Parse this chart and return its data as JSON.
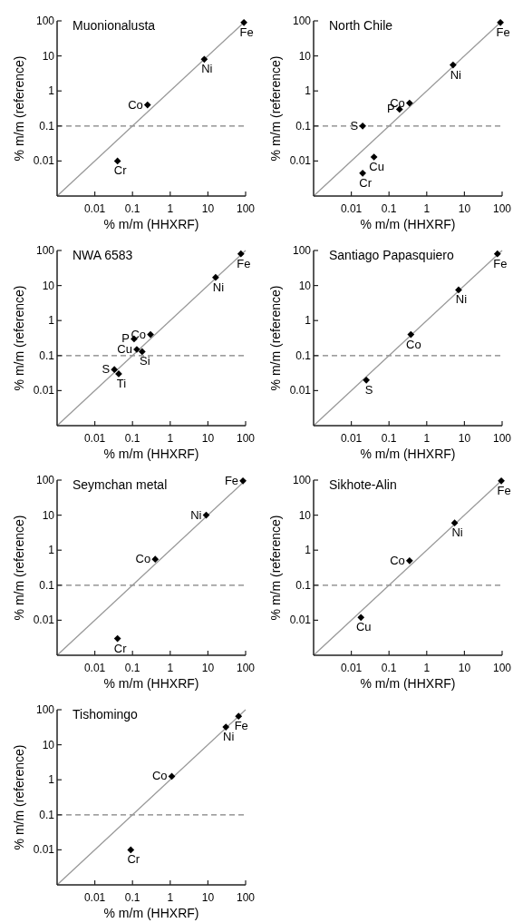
{
  "chart_data": [
    {
      "type": "scatter",
      "title": "Muonionalusta",
      "xlabel": "% m/m (HHXRF)",
      "ylabel": "% m/m (reference)",
      "log": "xy",
      "xlim": [
        0.001,
        100
      ],
      "ylim": [
        0.001,
        100
      ],
      "xticks": [
        0.01,
        0.1,
        1,
        10,
        100
      ],
      "yticks": [
        0.01,
        0.1,
        1,
        10,
        100
      ],
      "grid": false,
      "ref_lines": [
        {
          "axis": "y",
          "value": 0.1,
          "color": "#808080",
          "line_style": "dashed"
        }
      ],
      "series": [
        {
          "type": "line",
          "color": "#999999",
          "x": [
            0.001,
            100
          ],
          "values": [
            0.001,
            100
          ]
        },
        {
          "type": "scatter",
          "color": "#000000",
          "marker": "diamond",
          "x": [
            90,
            8,
            0.25,
            0.04
          ],
          "values": [
            90,
            8,
            0.4,
            0.01
          ]
        }
      ],
      "annotations": [
        {
          "text": "Fe",
          "x": 90,
          "y": 90
        },
        {
          "text": "Ni",
          "x": 8,
          "y": 8
        },
        {
          "text": "Co",
          "x": 0.25,
          "y": 0.4
        },
        {
          "text": "Cr",
          "x": 0.04,
          "y": 0.01
        }
      ]
    },
    {
      "type": "scatter",
      "title": "North Chile",
      "xlabel": "% m/m (HHXRF)",
      "ylabel": "% m/m (reference)",
      "log": "xy",
      "xlim": [
        0.001,
        100
      ],
      "ylim": [
        0.001,
        100
      ],
      "xticks": [
        0.01,
        0.1,
        1,
        10,
        100
      ],
      "yticks": [
        0.01,
        0.1,
        1,
        10,
        100
      ],
      "grid": false,
      "ref_lines": [
        {
          "axis": "y",
          "value": 0.1,
          "color": "#808080",
          "line_style": "dashed"
        }
      ],
      "series": [
        {
          "type": "line",
          "color": "#999999",
          "x": [
            0.001,
            100
          ],
          "values": [
            0.001,
            100
          ]
        },
        {
          "type": "scatter",
          "color": "#000000",
          "marker": "diamond",
          "x": [
            90,
            5,
            0.35,
            0.19,
            0.02,
            0.04,
            0.02
          ],
          "values": [
            90,
            5.5,
            0.45,
            0.3,
            0.1,
            0.013,
            0.0045
          ]
        }
      ],
      "annotations": [
        {
          "text": "Fe",
          "x": 90,
          "y": 90
        },
        {
          "text": "Ni",
          "x": 5,
          "y": 5.5
        },
        {
          "text": "Co",
          "x": 0.35,
          "y": 0.45
        },
        {
          "text": "P",
          "x": 0.19,
          "y": 0.3
        },
        {
          "text": "S",
          "x": 0.02,
          "y": 0.1
        },
        {
          "text": "Cu",
          "x": 0.04,
          "y": 0.013
        },
        {
          "text": "Cr",
          "x": 0.02,
          "y": 0.0045
        }
      ]
    },
    {
      "type": "scatter",
      "title": "NWA 6583",
      "xlabel": "% m/m (HHXRF)",
      "ylabel": "% m/m (reference)",
      "log": "xy",
      "xlim": [
        0.001,
        100
      ],
      "ylim": [
        0.001,
        100
      ],
      "xticks": [
        0.01,
        0.1,
        1,
        10,
        100
      ],
      "yticks": [
        0.01,
        0.1,
        1,
        10,
        100
      ],
      "grid": false,
      "ref_lines": [
        {
          "axis": "y",
          "value": 0.1,
          "color": "#808080",
          "line_style": "dashed"
        }
      ],
      "series": [
        {
          "type": "line",
          "color": "#999999",
          "x": [
            0.001,
            100
          ],
          "values": [
            0.001,
            100
          ]
        },
        {
          "type": "scatter",
          "color": "#000000",
          "marker": "diamond",
          "x": [
            75,
            16,
            0.3,
            0.11,
            0.13,
            0.18,
            0.033,
            0.043
          ],
          "values": [
            80,
            17,
            0.4,
            0.3,
            0.15,
            0.13,
            0.04,
            0.03
          ]
        }
      ],
      "annotations": [
        {
          "text": "Fe",
          "x": 75,
          "y": 80
        },
        {
          "text": "Ni",
          "x": 16,
          "y": 17
        },
        {
          "text": "Co",
          "x": 0.3,
          "y": 0.4
        },
        {
          "text": "P",
          "x": 0.11,
          "y": 0.3
        },
        {
          "text": "Cu",
          "x": 0.13,
          "y": 0.15
        },
        {
          "text": "Si",
          "x": 0.18,
          "y": 0.13
        },
        {
          "text": "S",
          "x": 0.033,
          "y": 0.04
        },
        {
          "text": "Ti",
          "x": 0.043,
          "y": 0.03
        }
      ]
    },
    {
      "type": "scatter",
      "title": "Santiago Papasquiero",
      "xlabel": "% m/m (HHXRF)",
      "ylabel": "% m/m (reference)",
      "log": "xy",
      "xlim": [
        0.001,
        100
      ],
      "ylim": [
        0.001,
        100
      ],
      "xticks": [
        0.01,
        0.1,
        1,
        10,
        100
      ],
      "yticks": [
        0.01,
        0.1,
        1,
        10,
        100
      ],
      "grid": false,
      "ref_lines": [
        {
          "axis": "y",
          "value": 0.1,
          "color": "#808080",
          "line_style": "dashed"
        }
      ],
      "series": [
        {
          "type": "line",
          "color": "#999999",
          "x": [
            0.001,
            100
          ],
          "values": [
            0.001,
            100
          ]
        },
        {
          "type": "scatter",
          "color": "#000000",
          "marker": "diamond",
          "x": [
            75,
            7,
            0.38,
            0.025
          ],
          "values": [
            80,
            7.5,
            0.4,
            0.02
          ]
        }
      ],
      "annotations": [
        {
          "text": "Fe",
          "x": 75,
          "y": 80
        },
        {
          "text": "Ni",
          "x": 7,
          "y": 7.5
        },
        {
          "text": "Co",
          "x": 0.38,
          "y": 0.4
        },
        {
          "text": "S",
          "x": 0.025,
          "y": 0.02
        }
      ]
    },
    {
      "type": "scatter",
      "title": "Seymchan metal",
      "xlabel": "% m/m (HHXRF)",
      "ylabel": "% m/m (reference)",
      "log": "xy",
      "xlim": [
        0.001,
        100
      ],
      "ylim": [
        0.001,
        100
      ],
      "xticks": [
        0.01,
        0.1,
        1,
        10,
        100
      ],
      "yticks": [
        0.01,
        0.1,
        1,
        10,
        100
      ],
      "grid": false,
      "ref_lines": [
        {
          "axis": "y",
          "value": 0.1,
          "color": "#808080",
          "line_style": "dashed"
        }
      ],
      "series": [
        {
          "type": "line",
          "color": "#999999",
          "x": [
            0.001,
            100
          ],
          "values": [
            0.001,
            100
          ]
        },
        {
          "type": "scatter",
          "color": "#000000",
          "marker": "diamond",
          "x": [
            85,
            9,
            0.4,
            0.04
          ],
          "values": [
            95,
            10,
            0.55,
            0.003
          ]
        }
      ],
      "annotations": [
        {
          "text": "Fe",
          "x": 85,
          "y": 95
        },
        {
          "text": "Ni",
          "x": 9,
          "y": 10
        },
        {
          "text": "Co",
          "x": 0.4,
          "y": 0.55
        },
        {
          "text": "Cr",
          "x": 0.04,
          "y": 0.003
        }
      ]
    },
    {
      "type": "scatter",
      "title": "Sikhote-Alin",
      "xlabel": "% m/m (HHXRF)",
      "ylabel": "% m/m (reference)",
      "log": "xy",
      "xlim": [
        0.001,
        100
      ],
      "ylim": [
        0.001,
        100
      ],
      "xticks": [
        0.01,
        0.1,
        1,
        10,
        100
      ],
      "yticks": [
        0.01,
        0.1,
        1,
        10,
        100
      ],
      "grid": false,
      "ref_lines": [
        {
          "axis": "y",
          "value": 0.1,
          "color": "#808080",
          "line_style": "dashed"
        }
      ],
      "series": [
        {
          "type": "line",
          "color": "#999999",
          "x": [
            0.001,
            100
          ],
          "values": [
            0.001,
            100
          ]
        },
        {
          "type": "scatter",
          "color": "#000000",
          "marker": "diamond",
          "x": [
            95,
            5.5,
            0.35,
            0.018
          ],
          "values": [
            95,
            6,
            0.5,
            0.012
          ]
        }
      ],
      "annotations": [
        {
          "text": "Fe",
          "x": 95,
          "y": 95
        },
        {
          "text": "Ni",
          "x": 5.5,
          "y": 6
        },
        {
          "text": "Co",
          "x": 0.35,
          "y": 0.5
        },
        {
          "text": "Cu",
          "x": 0.018,
          "y": 0.012
        }
      ]
    },
    {
      "type": "scatter",
      "title": "Tishomingo",
      "xlabel": "% m/m (HHXRF)",
      "ylabel": "% m/m (reference)",
      "log": "xy",
      "xlim": [
        0.001,
        100
      ],
      "ylim": [
        0.001,
        100
      ],
      "xticks": [
        0.01,
        0.1,
        1,
        10,
        100
      ],
      "yticks": [
        0.01,
        0.1,
        1,
        10,
        100
      ],
      "grid": false,
      "ref_lines": [
        {
          "axis": "y",
          "value": 0.1,
          "color": "#808080",
          "line_style": "dashed"
        }
      ],
      "series": [
        {
          "type": "line",
          "color": "#999999",
          "x": [
            0.001,
            100
          ],
          "values": [
            0.001,
            100
          ]
        },
        {
          "type": "scatter",
          "color": "#000000",
          "marker": "diamond",
          "x": [
            65,
            30,
            1.1,
            0.09
          ],
          "values": [
            65,
            32,
            1.25,
            0.01
          ]
        }
      ],
      "annotations": [
        {
          "text": "Fe",
          "x": 65,
          "y": 65
        },
        {
          "text": "Ni",
          "x": 30,
          "y": 32
        },
        {
          "text": "Co",
          "x": 1.1,
          "y": 1.25
        },
        {
          "text": "Cr",
          "x": 0.09,
          "y": 0.01
        }
      ]
    }
  ]
}
